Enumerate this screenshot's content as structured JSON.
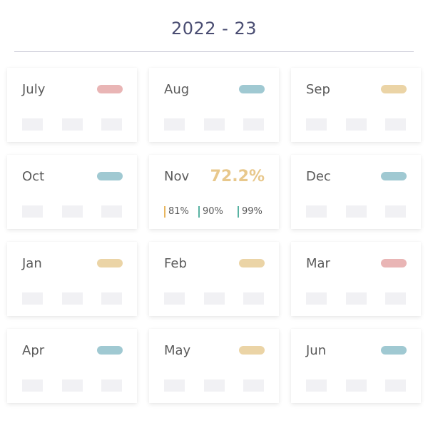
{
  "title": "2022 - 23",
  "colors": {
    "pink": "#e9b5b5",
    "blue": "#a0c9d2",
    "sand": "#ebd4a6",
    "accent": "#e8c88c"
  },
  "months": [
    {
      "label": "July",
      "status": "pink"
    },
    {
      "label": "Aug",
      "status": "blue"
    },
    {
      "label": "Sep",
      "status": "sand"
    },
    {
      "label": "Oct",
      "status": "blue"
    },
    {
      "label": "Nov",
      "percent": "72.2%",
      "stats": [
        "81%",
        "90%",
        "99%"
      ]
    },
    {
      "label": "Dec",
      "status": "blue"
    },
    {
      "label": "Jan",
      "status": "sand"
    },
    {
      "label": "Feb",
      "status": "sand"
    },
    {
      "label": "Mar",
      "status": "pink"
    },
    {
      "label": "Apr",
      "status": "blue"
    },
    {
      "label": "May",
      "status": "sand"
    },
    {
      "label": "Jun",
      "status": "blue"
    }
  ]
}
